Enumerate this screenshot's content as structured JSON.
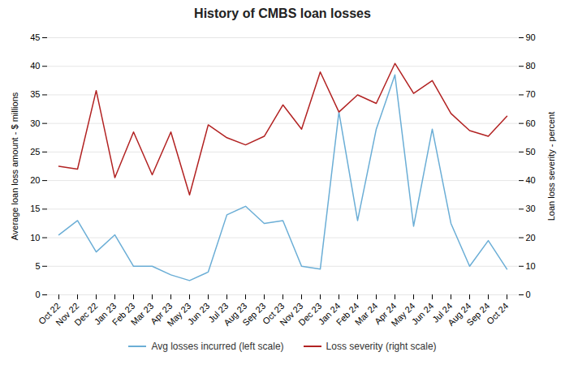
{
  "chart_data": {
    "type": "line",
    "title": "History  of CMBS loan losses",
    "ylabel": "Average loan loss amount - $ millions",
    "y2label": "Loan loss severity - percent",
    "categories": [
      "Oct 22",
      "Nov 22",
      "Dec 22",
      "Jan 23",
      "Feb 23",
      "Mar 23",
      "Apr 23",
      "May 23",
      "Jun 23",
      "Jul 23",
      "Aug 23",
      "Sep 23",
      "Oct 23",
      "Nov 23",
      "Dec 23",
      "Jan 24",
      "Feb 24",
      "Mar 24",
      "Apr 24",
      "May 24",
      "Jun 24",
      "Jul 24",
      "Aug 24",
      "Sep 24",
      "Oct 24"
    ],
    "series": [
      {
        "name": "Avg losses incurred (left scale)",
        "color": "#6baed6",
        "values": [
          10.5,
          13.0,
          7.5,
          10.5,
          5.0,
          5.0,
          3.5,
          2.5,
          4.0,
          14.0,
          15.5,
          12.5,
          13.0,
          5.0,
          4.5,
          32.0,
          13.0,
          29.0,
          38.5,
          12.0,
          29.0,
          12.5,
          5.0,
          9.5,
          4.5
        ]
      },
      {
        "name": "Loss severity (right scale)",
        "color": "#b22222",
        "axis": "y2",
        "values": [
          45.0,
          44.0,
          71.5,
          41.0,
          57.0,
          42.0,
          57.0,
          35.0,
          59.5,
          55.0,
          52.5,
          55.5,
          66.5,
          58.0,
          78.0,
          64.0,
          70.0,
          67.0,
          81.0,
          70.5,
          75.0,
          63.5,
          57.5,
          55.5,
          62.5
        ]
      }
    ],
    "ylim": [
      0,
      45
    ],
    "yticks": [
      0,
      5,
      10,
      15,
      20,
      25,
      30,
      35,
      40,
      45
    ],
    "y2lim": [
      0,
      90
    ],
    "y2ticks": [
      0,
      10,
      20,
      30,
      40,
      50,
      60,
      70,
      80,
      90
    ],
    "grid": true,
    "legend": "bottom"
  }
}
